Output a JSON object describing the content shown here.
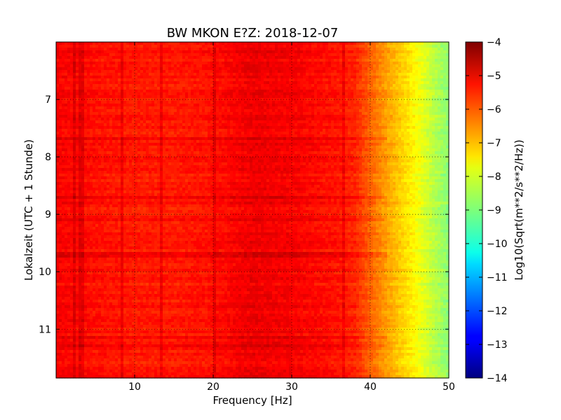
{
  "chart_data": {
    "type": "heatmap",
    "title": "BW MKON E?Z: 2018-12-07",
    "xlabel": "Frequency [Hz]",
    "ylabel": "Lokalzeit (UTC + 1 Stunde)",
    "xlim": [
      0,
      50
    ],
    "ylim": [
      11.85,
      6.0
    ],
    "y_inverted": true,
    "x_ticks": [
      10,
      20,
      30,
      40,
      50
    ],
    "x_tick_labels": [
      "10",
      "20",
      "30",
      "40",
      "50"
    ],
    "y_ticks": [
      7,
      8,
      9,
      10,
      11
    ],
    "y_tick_labels": [
      "7",
      "8",
      "9",
      "10",
      "11"
    ],
    "grid": true,
    "colorbar": {
      "label": "Log10(Sqrt(m**2/s**2/Hz))",
      "colormap": "jet",
      "range": [
        -14,
        -4
      ],
      "ticks": [
        -4,
        -5,
        -6,
        -7,
        -8,
        -9,
        -10,
        -11,
        -12,
        -13,
        -14
      ],
      "tick_labels": [
        "−4",
        "−5",
        "−6",
        "−7",
        "−8",
        "−9",
        "−10",
        "−11",
        "−12",
        "−13",
        "−14"
      ]
    },
    "spectral_profile": {
      "frequency_hz": [
        0,
        5,
        10,
        15,
        20,
        25,
        30,
        35,
        38,
        40,
        42,
        44,
        46,
        48,
        50
      ],
      "level": [
        -5.2,
        -5.4,
        -5.5,
        -5.5,
        -5.4,
        -5.1,
        -5.2,
        -5.4,
        -5.6,
        -6.2,
        -6.8,
        -7.3,
        -7.8,
        -8.4,
        -8.9
      ]
    },
    "line_features_hz": [
      2.4,
      3.2,
      8.5,
      13.5,
      20.2,
      36.5
    ],
    "banded_hours": [
      7.7,
      8.7,
      9.1,
      9.7,
      11.15,
      11.3
    ]
  }
}
